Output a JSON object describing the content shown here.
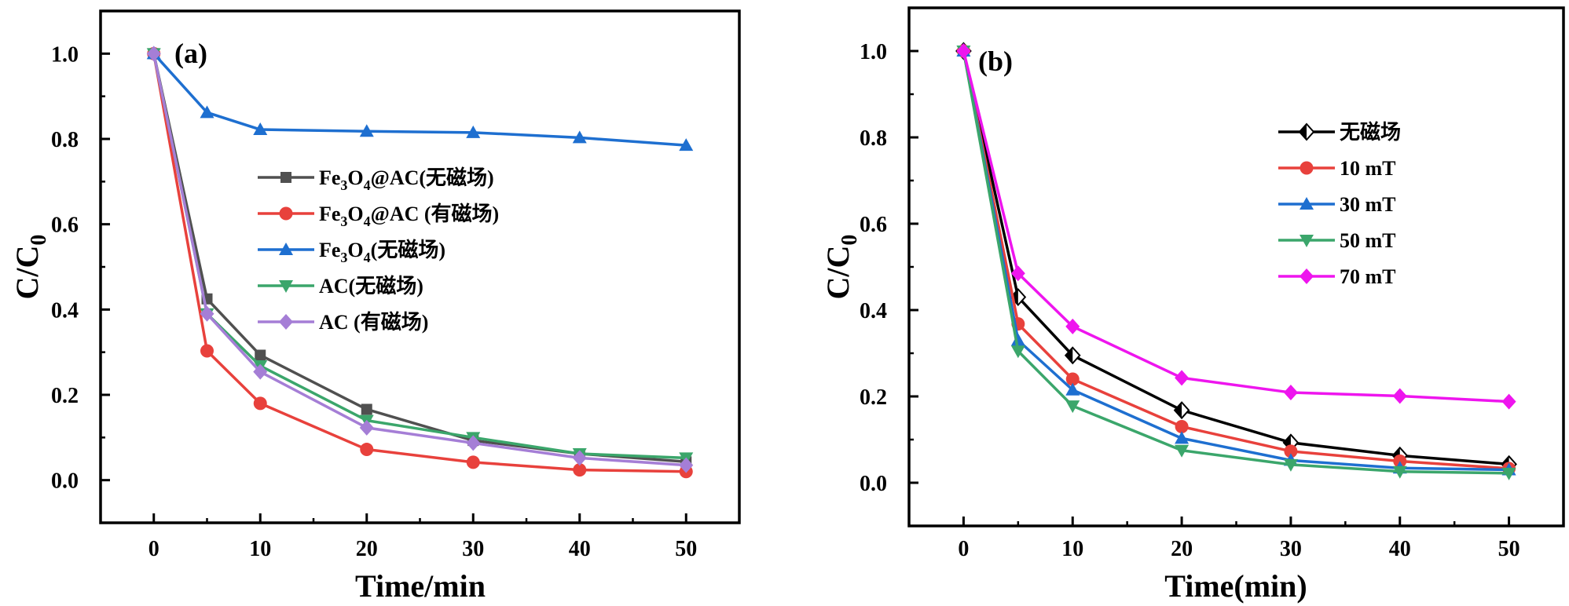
{
  "chart_data": [
    {
      "panel_label": "(a)",
      "type": "line",
      "xlabel": "Time/min",
      "ylabel": "C/C0",
      "ylabel_parts": {
        "main": "C/C",
        "sub": "0"
      },
      "xlim": [
        -5,
        55
      ],
      "ylim": [
        -0.1,
        1.1
      ],
      "xticks": [
        0,
        10,
        20,
        30,
        40,
        50
      ],
      "yticks": [
        0.0,
        0.2,
        0.4,
        0.6,
        0.8,
        1.0
      ],
      "xtick_labels": [
        "0",
        "10",
        "20",
        "30",
        "40",
        "50"
      ],
      "ytick_labels": [
        "0.0",
        "0.2",
        "0.4",
        "0.6",
        "0.8",
        "1.0"
      ],
      "legend_position": "center-right",
      "x": [
        0,
        5,
        10,
        20,
        30,
        40,
        50
      ],
      "series": [
        {
          "name": "Fe3O4@AC(无磁场)",
          "label_parts": [
            [
              "Fe",
              ""
            ],
            [
              "3",
              "sub"
            ],
            [
              "O",
              ""
            ],
            [
              "4",
              "sub"
            ],
            [
              "@AC(无磁场)",
              ""
            ]
          ],
          "color": "#505050",
          "marker": "square",
          "values": [
            1.0,
            0.425,
            0.293,
            0.166,
            0.093,
            0.062,
            0.043
          ]
        },
        {
          "name": "Fe3O4@AC (有磁场)",
          "label_parts": [
            [
              "Fe",
              ""
            ],
            [
              "3",
              "sub"
            ],
            [
              "O",
              ""
            ],
            [
              "4",
              "sub"
            ],
            [
              "@AC (有磁场)",
              ""
            ]
          ],
          "color": "#e8413c",
          "marker": "circle",
          "values": [
            1.0,
            0.303,
            0.18,
            0.072,
            0.042,
            0.024,
            0.02
          ]
        },
        {
          "name": "Fe3O4(无磁场)",
          "label_parts": [
            [
              "Fe",
              ""
            ],
            [
              "3",
              "sub"
            ],
            [
              "O",
              ""
            ],
            [
              "4",
              "sub"
            ],
            [
              "(无磁场)",
              ""
            ]
          ],
          "color": "#1e6fd0",
          "marker": "triangle-up",
          "values": [
            1.0,
            0.862,
            0.822,
            0.818,
            0.815,
            0.803,
            0.785
          ]
        },
        {
          "name": "AC(无磁场)",
          "label_parts": [
            [
              "AC(无磁场)",
              ""
            ]
          ],
          "color": "#3ba66b",
          "marker": "triangle-down",
          "values": [
            1.0,
            0.39,
            0.268,
            0.14,
            0.1,
            0.062,
            0.052
          ]
        },
        {
          "name": "AC (有磁场)",
          "label_parts": [
            [
              "AC (有磁场)",
              ""
            ]
          ],
          "color": "#a57ed6",
          "marker": "diamond",
          "values": [
            1.0,
            0.39,
            0.254,
            0.123,
            0.087,
            0.052,
            0.035
          ]
        }
      ]
    },
    {
      "panel_label": "(b)",
      "type": "line",
      "xlabel": "Time(min)",
      "ylabel": "C/C0",
      "ylabel_parts": {
        "main": "C/C",
        "sub": "0"
      },
      "xlim": [
        -5,
        55
      ],
      "ylim": [
        -0.1,
        1.1
      ],
      "xticks": [
        0,
        10,
        20,
        30,
        40,
        50
      ],
      "yticks": [
        0.0,
        0.2,
        0.4,
        0.6,
        0.8,
        1.0
      ],
      "xtick_labels": [
        "0",
        "10",
        "20",
        "30",
        "40",
        "50"
      ],
      "ytick_labels": [
        "0.0",
        "0.2",
        "0.4",
        "0.6",
        "0.8",
        "1.0"
      ],
      "legend_position": "top-right",
      "x": [
        0,
        5,
        10,
        20,
        30,
        40,
        50
      ],
      "series": [
        {
          "name": "无磁场",
          "label_parts": [
            [
              "无磁场",
              ""
            ]
          ],
          "color": "#000000",
          "marker": "diamond-open",
          "values": [
            1.0,
            0.43,
            0.295,
            0.168,
            0.093,
            0.063,
            0.043
          ]
        },
        {
          "name": "10 mT",
          "label_parts": [
            [
              "10 mT",
              ""
            ]
          ],
          "color": "#e8413c",
          "marker": "circle",
          "values": [
            1.0,
            0.368,
            0.24,
            0.13,
            0.073,
            0.05,
            0.033
          ]
        },
        {
          "name": "30 mT",
          "label_parts": [
            [
              "30 mT",
              ""
            ]
          ],
          "color": "#1e6fd0",
          "marker": "triangle-up",
          "values": [
            1.0,
            0.33,
            0.215,
            0.103,
            0.052,
            0.034,
            0.03
          ]
        },
        {
          "name": "50 mT",
          "label_parts": [
            [
              "50 mT",
              ""
            ]
          ],
          "color": "#3ba66b",
          "marker": "triangle-down",
          "values": [
            1.0,
            0.305,
            0.178,
            0.075,
            0.042,
            0.026,
            0.022
          ]
        },
        {
          "name": "70 mT",
          "label_parts": [
            [
              "70 mT",
              ""
            ]
          ],
          "color": "#ee15ee",
          "marker": "diamond",
          "values": [
            1.0,
            0.485,
            0.362,
            0.243,
            0.209,
            0.201,
            0.188
          ]
        }
      ]
    }
  ]
}
